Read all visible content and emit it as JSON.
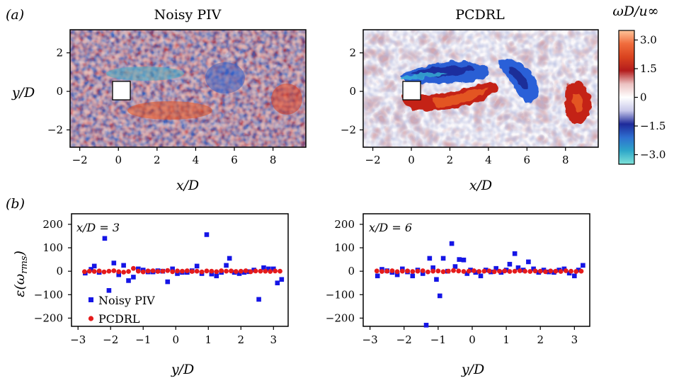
{
  "panel_a": {
    "letter": "(a)",
    "fields": [
      {
        "title": "Noisy PIV",
        "kind": "noisy"
      },
      {
        "title": "PCDRL",
        "kind": "clean"
      }
    ],
    "xlabel": "x/D",
    "ylabel": "y/D",
    "xticks": [
      "−2",
      "0",
      "2",
      "4",
      "6",
      "8"
    ],
    "yticks": [
      "2",
      "0",
      "−2"
    ],
    "xlim": [
      -2.5,
      9.7
    ],
    "ylim": [
      -2.9,
      3.2
    ],
    "cylinder": {
      "center": [
        0,
        0
      ],
      "size": 1
    }
  },
  "colorbar": {
    "label": "ωD/u∞",
    "ticks": [
      "3.0",
      "1.5",
      "0",
      "−1.5",
      "−3.0"
    ],
    "range": [
      -3.5,
      3.5
    ],
    "colors": [
      "#7fe3d8",
      "#2ea7c9",
      "#2e6fd0",
      "#1e2a9a",
      "#c8c8ea",
      "#ffffff",
      "#ecc2c2",
      "#b31c1c",
      "#d9431f",
      "#f06c3c",
      "#ffc49a"
    ]
  },
  "panel_b": {
    "letter": "(b)",
    "ylabel": "ε(ω_rms)",
    "xlabel": "y/D",
    "xticks": [
      "−3",
      "−2",
      "−1",
      "0",
      "1",
      "2",
      "3"
    ],
    "yticks": [
      "200",
      "100",
      "0",
      "−100",
      "−200"
    ],
    "legend": [
      "Noisy PIV",
      "PCDRL"
    ]
  },
  "colors": {
    "noisy": "#1515e6",
    "pcdrl": "#e51b1b"
  },
  "chart_data": [
    {
      "type": "scatter",
      "annotation": "x/D = 3",
      "xlim": [
        -3.2,
        3.45
      ],
      "ylim": [
        -235,
        245
      ],
      "series": [
        {
          "name": "Noisy PIV",
          "x": [
            -2.78,
            -2.6,
            -2.5,
            -2.35,
            -2.18,
            -2.05,
            -1.9,
            -1.75,
            -1.6,
            -1.45,
            -1.3,
            -1.15,
            -1.0,
            -0.85,
            -0.7,
            -0.55,
            -0.4,
            -0.25,
            -0.1,
            0.05,
            0.2,
            0.35,
            0.5,
            0.65,
            0.8,
            0.95,
            1.1,
            1.25,
            1.4,
            1.55,
            1.65,
            1.8,
            1.95,
            2.1,
            2.25,
            2.4,
            2.55,
            2.7,
            2.85,
            3.0,
            3.12,
            3.25
          ],
          "y": [
            -8,
            8,
            22,
            -5,
            140,
            -82,
            35,
            -15,
            25,
            -40,
            -25,
            10,
            5,
            -3,
            -3,
            2,
            0,
            -45,
            10,
            -10,
            -5,
            -5,
            2,
            22,
            -10,
            156,
            -12,
            -20,
            -5,
            25,
            55,
            -5,
            -10,
            -5,
            -2,
            5,
            -120,
            15,
            10,
            10,
            -50,
            -35
          ]
        },
        {
          "name": "PCDRL",
          "x": [
            -2.8,
            -2.65,
            -2.5,
            -2.35,
            -2.2,
            -2.05,
            -1.9,
            -1.75,
            -1.6,
            -1.45,
            -1.3,
            -1.15,
            -1.0,
            -0.85,
            -0.7,
            -0.55,
            -0.4,
            -0.25,
            -0.1,
            0.05,
            0.2,
            0.35,
            0.5,
            0.65,
            0.8,
            0.95,
            1.1,
            1.25,
            1.4,
            1.55,
            1.7,
            1.85,
            2.0,
            2.15,
            2.3,
            2.45,
            2.6,
            2.75,
            2.9,
            3.05,
            3.2
          ],
          "y": [
            -2,
            0,
            -1,
            1,
            -3,
            0,
            2,
            -2,
            -4,
            -1,
            12,
            0,
            -3,
            1,
            2,
            -1,
            0,
            3,
            -2,
            1,
            0,
            2,
            -1,
            0,
            -3,
            1,
            0,
            -2,
            2,
            0,
            1,
            -1,
            0,
            2,
            -2,
            1,
            0,
            0,
            -1,
            1,
            0
          ]
        }
      ]
    },
    {
      "type": "scatter",
      "annotation": "x/D = 6",
      "xlim": [
        -3.2,
        3.45
      ],
      "ylim": [
        -235,
        245
      ],
      "series": [
        {
          "name": "Noisy PIV",
          "x": [
            -2.78,
            -2.65,
            -2.5,
            -2.35,
            -2.2,
            -2.05,
            -1.9,
            -1.75,
            -1.6,
            -1.45,
            -1.35,
            -1.25,
            -1.15,
            -1.05,
            -0.95,
            -0.85,
            -0.72,
            -0.6,
            -0.5,
            -0.38,
            -0.25,
            -0.15,
            -0.05,
            0.1,
            0.25,
            0.4,
            0.55,
            0.7,
            0.85,
            1.0,
            1.1,
            1.25,
            1.35,
            1.5,
            1.65,
            1.8,
            1.95,
            2.1,
            2.25,
            2.4,
            2.55,
            2.7,
            2.85,
            3.0,
            3.12,
            3.25
          ],
          "y": [
            -20,
            8,
            2,
            -5,
            -15,
            10,
            -3,
            -20,
            5,
            -10,
            -230,
            55,
            15,
            -35,
            -105,
            55,
            0,
            118,
            20,
            50,
            48,
            -10,
            5,
            -5,
            -20,
            5,
            -3,
            12,
            -5,
            5,
            30,
            75,
            15,
            5,
            40,
            10,
            -5,
            5,
            -3,
            -5,
            5,
            10,
            -8,
            -20,
            5,
            25
          ]
        },
        {
          "name": "PCDRL",
          "x": [
            -2.8,
            -2.65,
            -2.5,
            -2.35,
            -2.2,
            -2.05,
            -1.9,
            -1.75,
            -1.6,
            -1.45,
            -1.3,
            -1.15,
            -1.0,
            -0.85,
            -0.7,
            -0.55,
            -0.4,
            -0.25,
            -0.1,
            0.05,
            0.2,
            0.35,
            0.5,
            0.65,
            0.8,
            0.95,
            1.1,
            1.25,
            1.4,
            1.55,
            1.7,
            1.85,
            2.0,
            2.15,
            2.3,
            2.45,
            2.6,
            2.75,
            2.9,
            3.05,
            3.2
          ],
          "y": [
            1,
            -1,
            0,
            2,
            -2,
            0,
            1,
            -1,
            0,
            2,
            -3,
            0,
            1,
            -2,
            0,
            3,
            1,
            -1,
            0,
            2,
            -1,
            0,
            1,
            -2,
            0,
            1,
            -1,
            0,
            2,
            0,
            -1,
            1,
            0,
            -2,
            1,
            0,
            -1,
            2,
            0,
            -1,
            0
          ]
        }
      ]
    }
  ]
}
